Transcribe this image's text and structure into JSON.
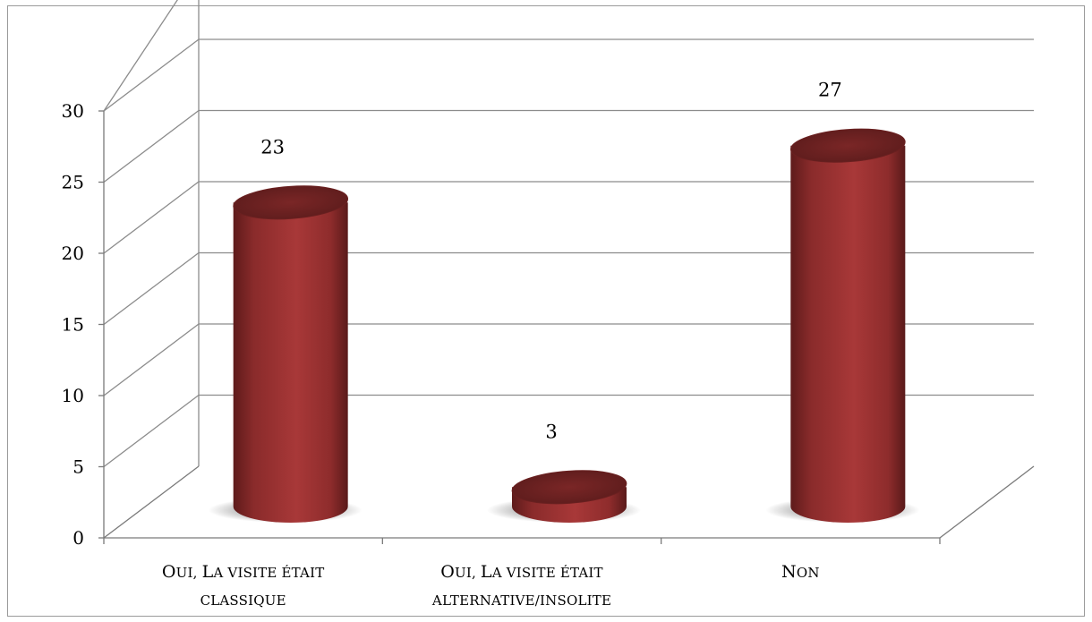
{
  "chart_data": {
    "type": "bar",
    "style": "3d-cylinder",
    "categories": [
      "Oui, La visite était classique",
      "Oui, La visite était alternative/insolite",
      "Non"
    ],
    "category_lines": [
      [
        "Oui, La visite était",
        "classique"
      ],
      [
        "Oui, La visite était",
        "alternative/insolite"
      ],
      [
        "Non"
      ]
    ],
    "values": [
      23,
      3,
      27
    ],
    "data_labels": [
      "23",
      "3",
      "27"
    ],
    "y_ticks": [
      "0",
      "5",
      "10",
      "15",
      "20",
      "25",
      "30"
    ],
    "ylim": [
      0,
      30
    ],
    "grid": true,
    "legend": "none",
    "bar_color": "#a33535",
    "title": "",
    "xlabel": "",
    "ylabel": ""
  }
}
